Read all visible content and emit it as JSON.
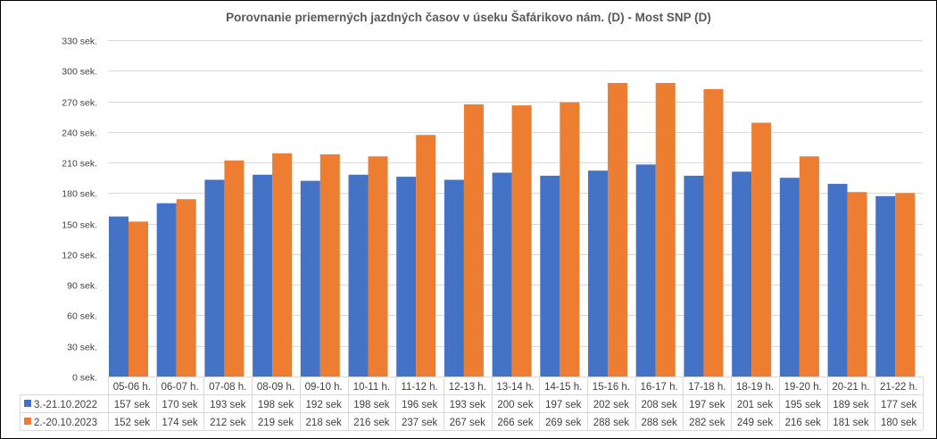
{
  "chart_data": {
    "type": "bar",
    "title": "Porovnanie priemerných jazdných časov v úseku Šafárikovo nám. (D) - Most SNP (D)",
    "categories": [
      "05-06 h.",
      "06-07 h.",
      "07-08 h.",
      "08-09 h.",
      "09-10 h.",
      "10-11 h.",
      "11-12 h.",
      "12-13 h.",
      "13-14 h.",
      "14-15 h.",
      "15-16 h.",
      "16-17 h.",
      "17-18 h.",
      "18-19 h.",
      "19-20 h.",
      "20-21 h.",
      "21-22 h."
    ],
    "series": [
      {
        "name": "3.-21.10.2022",
        "color": "#4472C4",
        "values": [
          157,
          170,
          193,
          198,
          192,
          198,
          196,
          193,
          200,
          197,
          202,
          208,
          197,
          201,
          195,
          189,
          177
        ]
      },
      {
        "name": "2.-20.10.2023",
        "color": "#ED7D31",
        "values": [
          152,
          174,
          212,
          219,
          218,
          216,
          237,
          267,
          266,
          269,
          288,
          288,
          282,
          249,
          216,
          181,
          180
        ]
      }
    ],
    "value_suffix": " sek",
    "ylim": [
      0,
      330
    ],
    "yticks": [
      0,
      30,
      60,
      90,
      120,
      150,
      180,
      210,
      240,
      270,
      300,
      330
    ],
    "ytick_labels": [
      "0 sek.",
      "30 sek.",
      "60 sek.",
      "90 sek.",
      "120 sek.",
      "150 sek.",
      "180 sek.",
      "210 sek.",
      "240 sek.",
      "270 sek.",
      "300 sek.",
      "330 sek."
    ],
    "grid": true,
    "legend": "data-table"
  }
}
